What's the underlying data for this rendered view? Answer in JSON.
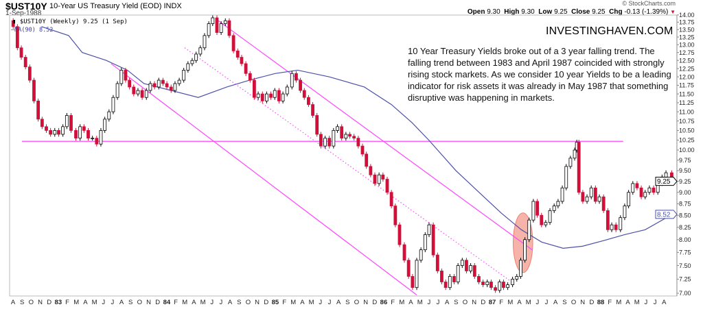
{
  "header": {
    "symbol": "$UST10Y",
    "title": "10-Year US Treasury Yield (EOD) INDX",
    "date": "1-Sep-1988",
    "copyright": "© StockCharts.com",
    "ohlc": {
      "open_label": "Open",
      "open": "9.30",
      "high_label": "High",
      "high": "9.30",
      "low_label": "Low",
      "low": "9.25",
      "close_label": "Close",
      "close": "9.25",
      "chg_label": "Chg",
      "chg": "-0.13 (-1.39%)",
      "chg_icon": "triangle-down-icon",
      "chg_color": "#d0103a"
    },
    "legend_price": "$UST10Y (Weekly) 9.25 (1 Sep)",
    "legend_ma": "MA(90) 8.52"
  },
  "annotation": {
    "brand": "INVESTINGHAVEN.COM",
    "text": "10 Year Treasury Yields broke out of a 3 year falling trend. The falling trend between 1983 and April 1987 coincided with strongly rising stock markets. As we consider 10 year Yields to be a leading indicator for risk assets it was already in May 1987 that something disruptive was happening in markets."
  },
  "colors": {
    "up": "#000000",
    "down": "#d0103a",
    "ma": "#4a4fa8",
    "trendline": "#ff44ff",
    "highlight": "#f08070"
  },
  "chart_data": {
    "type": "candlestick",
    "scale": "log",
    "ylim": [
      7.0,
      14.0
    ],
    "xlim": [
      "1982-08-01",
      "1988-09-10"
    ],
    "yticks": [
      "14.00",
      "13.75",
      "13.50",
      "13.25",
      "13.00",
      "12.75",
      "12.50",
      "12.25",
      "12.00",
      "11.75",
      "11.50",
      "11.25",
      "11.00",
      "10.75",
      "10.50",
      "10.25",
      "10.00",
      "9.75",
      "9.50",
      "9.25",
      "9.00",
      "8.75",
      "8.50",
      "8.25",
      "8.00",
      "7.75",
      "7.50",
      "7.25",
      "7.00"
    ],
    "xticks": [
      "A",
      "S",
      "O",
      "N",
      "D",
      "83",
      "F",
      "M",
      "A",
      "M",
      "J",
      "J",
      "A",
      "S",
      "O",
      "N",
      "D",
      "84",
      "F",
      "M",
      "A",
      "M",
      "J",
      "J",
      "A",
      "S",
      "O",
      "N",
      "D",
      "85",
      "F",
      "M",
      "A",
      "M",
      "J",
      "J",
      "A",
      "S",
      "O",
      "N",
      "D",
      "86",
      "F",
      "M",
      "A",
      "M",
      "J",
      "J",
      "A",
      "S",
      "O",
      "N",
      "D",
      "87",
      "F",
      "M",
      "A",
      "M",
      "J",
      "J",
      "A",
      "S",
      "O",
      "N",
      "D",
      "88",
      "F",
      "M",
      "A",
      "M",
      "J",
      "J",
      "A"
    ],
    "price_label": "9.25",
    "ma_label": "8.52",
    "series": [
      {
        "name": "$UST10Y (Weekly)",
        "type": "candlestick",
        "points": [
          [
            "1982-08-06",
            13.6
          ],
          [
            "1982-08-20",
            12.9
          ],
          [
            "1982-09-03",
            12.6
          ],
          [
            "1982-09-17",
            12.3
          ],
          [
            "1982-10-01",
            11.9
          ],
          [
            "1982-10-15",
            11.3
          ],
          [
            "1982-10-29",
            10.8
          ],
          [
            "1982-11-12",
            10.6
          ],
          [
            "1982-11-26",
            10.5
          ],
          [
            "1982-12-10",
            10.4
          ],
          [
            "1982-12-24",
            10.5
          ],
          [
            "1983-01-07",
            10.4
          ],
          [
            "1983-01-21",
            10.6
          ],
          [
            "1983-02-04",
            10.9
          ],
          [
            "1983-02-18",
            10.5
          ],
          [
            "1983-03-04",
            10.3
          ],
          [
            "1983-03-18",
            10.6
          ],
          [
            "1983-04-01",
            10.5
          ],
          [
            "1983-04-15",
            10.3
          ],
          [
            "1983-04-29",
            10.3
          ],
          [
            "1983-05-13",
            10.15
          ],
          [
            "1983-05-27",
            10.5
          ],
          [
            "1983-06-10",
            10.8
          ],
          [
            "1983-06-24",
            11.0
          ],
          [
            "1983-07-08",
            11.4
          ],
          [
            "1983-07-22",
            11.8
          ],
          [
            "1983-08-05",
            12.2
          ],
          [
            "1983-08-19",
            11.9
          ],
          [
            "1983-09-02",
            11.7
          ],
          [
            "1983-09-16",
            11.5
          ],
          [
            "1983-09-30",
            11.6
          ],
          [
            "1983-10-14",
            11.4
          ],
          [
            "1983-10-28",
            11.6
          ],
          [
            "1983-11-11",
            11.8
          ],
          [
            "1983-11-25",
            11.7
          ],
          [
            "1983-12-09",
            11.9
          ],
          [
            "1983-12-23",
            11.8
          ],
          [
            "1984-01-06",
            11.7
          ],
          [
            "1984-01-20",
            11.6
          ],
          [
            "1984-02-03",
            11.8
          ],
          [
            "1984-02-17",
            11.9
          ],
          [
            "1984-03-02",
            12.2
          ],
          [
            "1984-03-16",
            12.4
          ],
          [
            "1984-03-30",
            12.5
          ],
          [
            "1984-04-13",
            12.7
          ],
          [
            "1984-04-27",
            12.9
          ],
          [
            "1984-05-11",
            13.3
          ],
          [
            "1984-05-25",
            13.7
          ],
          [
            "1984-06-08",
            13.9
          ],
          [
            "1984-06-22",
            13.4
          ],
          [
            "1984-07-06",
            13.7
          ],
          [
            "1984-07-20",
            13.8
          ],
          [
            "1984-08-03",
            13.3
          ],
          [
            "1984-08-17",
            12.8
          ],
          [
            "1984-08-31",
            12.6
          ],
          [
            "1984-09-14",
            12.4
          ],
          [
            "1984-09-28",
            12.1
          ],
          [
            "1984-10-12",
            11.9
          ],
          [
            "1984-10-26",
            11.4
          ],
          [
            "1984-11-09",
            11.5
          ],
          [
            "1984-11-23",
            11.3
          ],
          [
            "1984-12-07",
            11.5
          ],
          [
            "1984-12-21",
            11.4
          ],
          [
            "1985-01-04",
            11.6
          ],
          [
            "1985-01-18",
            11.3
          ],
          [
            "1985-02-01",
            11.5
          ],
          [
            "1985-02-15",
            11.7
          ],
          [
            "1985-03-01",
            12.1
          ],
          [
            "1985-03-15",
            11.9
          ],
          [
            "1985-03-29",
            11.6
          ],
          [
            "1985-04-12",
            11.4
          ],
          [
            "1985-04-26",
            11.2
          ],
          [
            "1985-05-10",
            10.9
          ],
          [
            "1985-05-24",
            10.4
          ],
          [
            "1985-06-07",
            10.1
          ],
          [
            "1985-06-21",
            10.3
          ],
          [
            "1985-07-05",
            10.1
          ],
          [
            "1985-07-19",
            10.5
          ],
          [
            "1985-08-02",
            10.6
          ],
          [
            "1985-08-16",
            10.3
          ],
          [
            "1985-08-30",
            10.4
          ],
          [
            "1985-09-13",
            10.35
          ],
          [
            "1985-09-27",
            10.3
          ],
          [
            "1985-10-11",
            10.1
          ],
          [
            "1985-10-25",
            9.9
          ],
          [
            "1985-11-08",
            9.6
          ],
          [
            "1985-11-22",
            9.4
          ],
          [
            "1985-12-06",
            9.2
          ],
          [
            "1985-12-20",
            9.4
          ],
          [
            "1986-01-03",
            9.3
          ],
          [
            "1986-01-17",
            9.0
          ],
          [
            "1986-01-31",
            8.7
          ],
          [
            "1986-02-14",
            8.3
          ],
          [
            "1986-02-28",
            7.9
          ],
          [
            "1986-03-14",
            7.6
          ],
          [
            "1986-03-28",
            7.3
          ],
          [
            "1986-04-11",
            7.1
          ],
          [
            "1986-04-25",
            7.6
          ],
          [
            "1986-05-09",
            7.8
          ],
          [
            "1986-05-23",
            8.1
          ],
          [
            "1986-06-06",
            8.3
          ],
          [
            "1986-06-20",
            7.7
          ],
          [
            "1986-07-04",
            7.4
          ],
          [
            "1986-07-18",
            7.2
          ],
          [
            "1986-08-01",
            7.1
          ],
          [
            "1986-08-15",
            7.3
          ],
          [
            "1986-08-29",
            7.2
          ],
          [
            "1986-09-12",
            7.5
          ],
          [
            "1986-09-26",
            7.6
          ],
          [
            "1986-10-10",
            7.4
          ],
          [
            "1986-10-24",
            7.5
          ],
          [
            "1986-11-07",
            7.3
          ],
          [
            "1986-11-21",
            7.2
          ],
          [
            "1986-12-05",
            7.15
          ],
          [
            "1986-12-19",
            7.2
          ],
          [
            "1987-01-02",
            7.1
          ],
          [
            "1987-01-16",
            7.05
          ],
          [
            "1987-01-30",
            7.2
          ],
          [
            "1987-02-13",
            7.1
          ],
          [
            "1987-02-27",
            7.15
          ],
          [
            "1987-03-13",
            7.25
          ],
          [
            "1987-03-27",
            7.3
          ],
          [
            "1987-04-10",
            7.6
          ],
          [
            "1987-04-24",
            8.0
          ],
          [
            "1987-05-08",
            8.4
          ],
          [
            "1987-05-22",
            8.8
          ],
          [
            "1987-06-05",
            8.5
          ],
          [
            "1987-06-19",
            8.3
          ],
          [
            "1987-07-03",
            8.35
          ],
          [
            "1987-07-17",
            8.6
          ],
          [
            "1987-07-31",
            8.7
          ],
          [
            "1987-08-14",
            8.8
          ],
          [
            "1987-08-28",
            9.1
          ],
          [
            "1987-09-11",
            9.6
          ],
          [
            "1987-09-25",
            9.8
          ],
          [
            "1987-10-09",
            10.0
          ],
          [
            "1987-10-16",
            10.2
          ],
          [
            "1987-10-23",
            9.0
          ],
          [
            "1987-11-06",
            8.8
          ],
          [
            "1987-11-20",
            8.9
          ],
          [
            "1987-12-04",
            9.1
          ],
          [
            "1987-12-18",
            8.8
          ],
          [
            "1988-01-01",
            8.9
          ],
          [
            "1988-01-15",
            8.6
          ],
          [
            "1988-01-29",
            8.2
          ],
          [
            "1988-02-12",
            8.3
          ],
          [
            "1988-02-26",
            8.2
          ],
          [
            "1988-03-11",
            8.45
          ],
          [
            "1988-03-25",
            8.7
          ],
          [
            "1988-04-08",
            9.0
          ],
          [
            "1988-04-22",
            9.2
          ],
          [
            "1988-05-06",
            9.1
          ],
          [
            "1988-05-20",
            8.9
          ],
          [
            "1988-06-03",
            9.0
          ],
          [
            "1988-06-17",
            9.1
          ],
          [
            "1988-07-01",
            9.0
          ],
          [
            "1988-07-15",
            9.2
          ],
          [
            "1988-07-29",
            9.35
          ],
          [
            "1988-08-12",
            9.45
          ],
          [
            "1988-09-01",
            9.25
          ]
        ]
      },
      {
        "name": "MA(90)",
        "type": "line",
        "points": [
          [
            "1982-11-10",
            13.6
          ],
          [
            "1983-02-10",
            13.3
          ],
          [
            "1983-03-25",
            12.75
          ],
          [
            "1983-06-15",
            12.5
          ],
          [
            "1983-08-25",
            12.2
          ],
          [
            "1983-10-20",
            11.8
          ],
          [
            "1984-01-20",
            11.6
          ],
          [
            "1984-04-20",
            11.4
          ],
          [
            "1984-07-25",
            11.7
          ],
          [
            "1984-10-10",
            11.9
          ],
          [
            "1985-01-05",
            12.1
          ],
          [
            "1985-03-20",
            12.2
          ],
          [
            "1985-07-05",
            12.0
          ],
          [
            "1985-11-01",
            11.7
          ],
          [
            "1986-02-01",
            11.2
          ],
          [
            "1986-04-10",
            10.7
          ],
          [
            "1986-06-05",
            10.25
          ],
          [
            "1986-09-05",
            9.5
          ],
          [
            "1986-11-25",
            8.98
          ],
          [
            "1987-02-05",
            8.55
          ],
          [
            "1987-04-12",
            8.2
          ],
          [
            "1987-06-20",
            7.95
          ],
          [
            "1987-09-01",
            7.83
          ],
          [
            "1987-11-05",
            7.87
          ],
          [
            "1988-01-15",
            7.98
          ],
          [
            "1988-03-25",
            8.1
          ],
          [
            "1988-06-03",
            8.2
          ],
          [
            "1988-09-03",
            8.52
          ]
        ]
      }
    ],
    "trendlines": [
      {
        "style": "solid",
        "from": [
          "1982-09-05",
          10.22
        ],
        "to": [
          "1988-03-20",
          10.22
        ]
      },
      {
        "style": "solid",
        "from": [
          "1984-06-20",
          13.85
        ],
        "to": [
          "1987-05-18",
          7.8
        ]
      },
      {
        "style": "solid",
        "from": [
          "1983-07-01",
          12.4
        ],
        "to": [
          "1986-04-25",
          6.97
        ]
      },
      {
        "style": "dotted",
        "from": [
          "1984-03-05",
          12.9
        ],
        "to": [
          "1987-03-10",
          7.2
        ]
      }
    ],
    "highlight": {
      "shape": "ellipse",
      "date_start": "1987-03-15",
      "date_end": "1987-05-20",
      "price_low": 7.37,
      "price_high": 8.55
    }
  }
}
